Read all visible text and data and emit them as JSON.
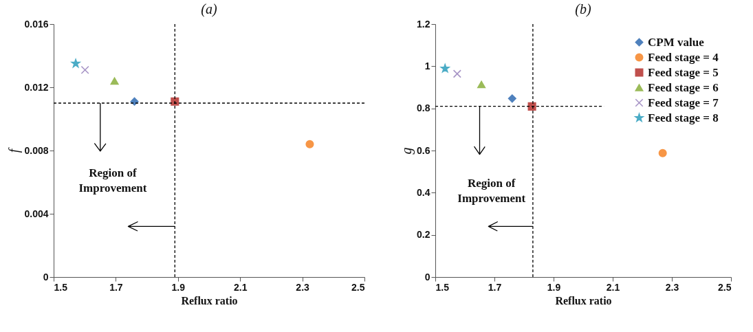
{
  "chart_data": [
    {
      "type": "scatter",
      "title": "(a)",
      "xlabel": "Reflux ratio",
      "ylabel": "f",
      "xlim": [
        1.5,
        2.5
      ],
      "ylim": [
        0,
        0.016
      ],
      "xticks": [
        1.5,
        1.7,
        1.9,
        2.1,
        2.3,
        2.5
      ],
      "yticks": [
        0,
        0.004,
        0.008,
        0.012,
        0.016
      ],
      "series": [
        {
          "color": "#4f81bd",
          "marker": "diamond",
          "x": [
            1.76
          ],
          "values": [
            0.0111
          ]
        },
        {
          "color": "#f79646",
          "marker": "circle",
          "x": [
            2.324
          ],
          "values": [
            0.0084
          ]
        },
        {
          "color": "#c0504d",
          "marker": "square",
          "x": [
            1.89
          ],
          "values": [
            0.0111
          ]
        },
        {
          "color": "#9bbb59",
          "marker": "triangle",
          "x": [
            1.696
          ],
          "values": [
            0.0124
          ]
        },
        {
          "color": "#a794c6",
          "marker": "cross",
          "x": [
            1.601
          ],
          "values": [
            0.0131
          ]
        },
        {
          "color": "#4bacc6",
          "marker": "star",
          "x": [
            1.571
          ],
          "values": [
            0.0135
          ]
        }
      ],
      "ref_lines": [
        {
          "axis": "y",
          "value": 0.011,
          "line_style": "dashed"
        },
        {
          "axis": "x",
          "value": 1.89,
          "line_style": "dashed"
        }
      ],
      "annotations": [
        "Region of Improvement"
      ]
    },
    {
      "type": "scatter",
      "title": "(b)",
      "xlabel": "Reflux ratio",
      "ylabel": "g",
      "xlim": [
        1.5,
        2.5
      ],
      "ylim": [
        0,
        1.2
      ],
      "xticks": [
        1.5,
        1.7,
        1.9,
        2.1,
        2.3,
        2.5
      ],
      "yticks": [
        0,
        0.2,
        0.4,
        0.6,
        0.8,
        1,
        1.2
      ],
      "legend": "top right",
      "series": [
        {
          "name": "CPM value",
          "color": "#4f81bd",
          "marker": "diamond",
          "x": [
            1.76
          ],
          "values": [
            0.847
          ]
        },
        {
          "name": "Feed stage = 4",
          "color": "#f79646",
          "marker": "circle",
          "x": [
            2.269
          ],
          "values": [
            0.588
          ]
        },
        {
          "name": "Feed stage = 5",
          "color": "#c0504d",
          "marker": "square",
          "x": [
            1.827
          ],
          "values": [
            0.809
          ]
        },
        {
          "name": "Feed stage = 6",
          "color": "#9bbb59",
          "marker": "triangle",
          "x": [
            1.656
          ],
          "values": [
            0.913
          ]
        },
        {
          "name": "Feed stage = 7",
          "color": "#a794c6",
          "marker": "cross",
          "x": [
            1.574
          ],
          "values": [
            0.964
          ]
        },
        {
          "name": "Feed stage = 8",
          "color": "#4bacc6",
          "marker": "star",
          "x": [
            1.533
          ],
          "values": [
            0.989
          ]
        }
      ],
      "ref_lines": [
        {
          "axis": "y",
          "value": 0.81,
          "line_style": "dashed"
        },
        {
          "axis": "x",
          "value": 1.83,
          "line_style": "dashed"
        }
      ],
      "annotations": [
        "Region of Improvement"
      ]
    }
  ]
}
